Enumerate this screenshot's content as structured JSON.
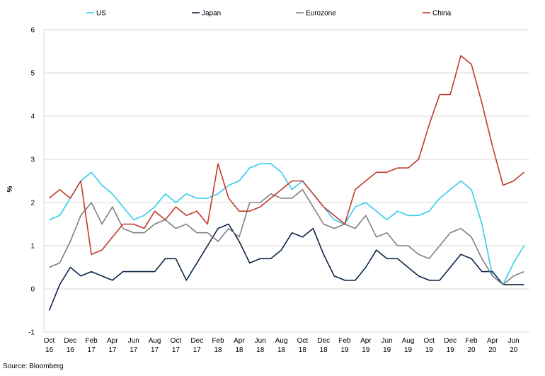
{
  "source": "Source: Bloomberg",
  "chart_data": {
    "type": "line",
    "title": "",
    "xlabel": "",
    "ylabel": "%",
    "ylim": [
      -1,
      6
    ],
    "yticks": [
      -1,
      0,
      1,
      2,
      3,
      4,
      5,
      6
    ],
    "grid": "horizontal",
    "legend_position": "top",
    "x": [
      "Oct 16",
      "Nov 16",
      "Dec 16",
      "Jan 17",
      "Feb 17",
      "Mar 17",
      "Apr 17",
      "May 17",
      "Jun 17",
      "Jul 17",
      "Aug 17",
      "Sep 17",
      "Oct 17",
      "Nov 17",
      "Dec 17",
      "Jan 18",
      "Feb 18",
      "Mar 18",
      "Apr 18",
      "May 18",
      "Jun 18",
      "Jul 18",
      "Aug 18",
      "Sep 18",
      "Oct 18",
      "Nov 18",
      "Dec 18",
      "Jan 19",
      "Feb 19",
      "Mar 19",
      "Apr 19",
      "May 19",
      "Jun 19",
      "Jul 19",
      "Aug 19",
      "Sep 19",
      "Oct 19",
      "Nov 19",
      "Dec 19",
      "Jan 20",
      "Feb 20",
      "Mar 20",
      "Apr 20",
      "May 20",
      "Jun 20",
      "Jul 20"
    ],
    "x_tick_labels": [
      {
        "index": 0,
        "line1": "Oct",
        "line2": "16"
      },
      {
        "index": 2,
        "line1": "Dec",
        "line2": "16"
      },
      {
        "index": 4,
        "line1": "Feb",
        "line2": "17"
      },
      {
        "index": 6,
        "line1": "Apr",
        "line2": "17"
      },
      {
        "index": 8,
        "line1": "Jun",
        "line2": "17"
      },
      {
        "index": 10,
        "line1": "Aug",
        "line2": "17"
      },
      {
        "index": 12,
        "line1": "Oct",
        "line2": "17"
      },
      {
        "index": 14,
        "line1": "Dec",
        "line2": "17"
      },
      {
        "index": 16,
        "line1": "Feb",
        "line2": "18"
      },
      {
        "index": 18,
        "line1": "Apr",
        "line2": "18"
      },
      {
        "index": 20,
        "line1": "Jun",
        "line2": "18"
      },
      {
        "index": 22,
        "line1": "Aug",
        "line2": "18"
      },
      {
        "index": 24,
        "line1": "Oct",
        "line2": "18"
      },
      {
        "index": 26,
        "line1": "Dec",
        "line2": "18"
      },
      {
        "index": 28,
        "line1": "Feb",
        "line2": "19"
      },
      {
        "index": 30,
        "line1": "Apr",
        "line2": "19"
      },
      {
        "index": 32,
        "line1": "Jun",
        "line2": "19"
      },
      {
        "index": 34,
        "line1": "Aug",
        "line2": "19"
      },
      {
        "index": 36,
        "line1": "Oct",
        "line2": "19"
      },
      {
        "index": 38,
        "line1": "Dec",
        "line2": "19"
      },
      {
        "index": 40,
        "line1": "Feb",
        "line2": "20"
      },
      {
        "index": 42,
        "line1": "Apr",
        "line2": "20"
      },
      {
        "index": 44,
        "line1": "Jun",
        "line2": "20"
      }
    ],
    "series": [
      {
        "name": "US",
        "color": "#33CCEE",
        "values": [
          1.6,
          1.7,
          2.1,
          2.5,
          2.7,
          2.4,
          2.2,
          1.9,
          1.6,
          1.7,
          1.9,
          2.2,
          2.0,
          2.2,
          2.1,
          2.1,
          2.2,
          2.4,
          2.5,
          2.8,
          2.9,
          2.9,
          2.7,
          2.3,
          2.5,
          2.2,
          1.9,
          1.6,
          1.5,
          1.9,
          2.0,
          1.8,
          1.6,
          1.8,
          1.7,
          1.7,
          1.8,
          2.1,
          2.3,
          2.5,
          2.3,
          1.5,
          0.3,
          0.1,
          0.6,
          1.0
        ]
      },
      {
        "name": "Japan",
        "color": "#0B2447",
        "values": [
          -0.5,
          0.1,
          0.5,
          0.3,
          0.4,
          0.3,
          0.2,
          0.4,
          0.4,
          0.4,
          0.4,
          0.7,
          0.7,
          0.2,
          0.6,
          1.0,
          1.4,
          1.5,
          1.1,
          0.6,
          0.7,
          0.7,
          0.9,
          1.3,
          1.2,
          1.4,
          0.8,
          0.3,
          0.2,
          0.2,
          0.5,
          0.9,
          0.7,
          0.7,
          0.5,
          0.3,
          0.2,
          0.2,
          0.5,
          0.8,
          0.7,
          0.4,
          0.4,
          0.1,
          0.1,
          0.1
        ]
      },
      {
        "name": "Eurozone",
        "color": "#808080",
        "values": [
          0.5,
          0.6,
          1.1,
          1.7,
          2.0,
          1.5,
          1.9,
          1.4,
          1.3,
          1.3,
          1.5,
          1.6,
          1.4,
          1.5,
          1.3,
          1.3,
          1.1,
          1.4,
          1.2,
          2.0,
          2.0,
          2.2,
          2.1,
          2.1,
          2.3,
          1.9,
          1.5,
          1.4,
          1.5,
          1.4,
          1.7,
          1.2,
          1.3,
          1.0,
          1.0,
          0.8,
          0.7,
          1.0,
          1.3,
          1.4,
          1.2,
          0.7,
          0.3,
          0.1,
          0.3,
          0.4
        ]
      },
      {
        "name": "China",
        "color": "#C0392B",
        "values": [
          2.1,
          2.3,
          2.1,
          2.5,
          0.8,
          0.9,
          1.2,
          1.5,
          1.5,
          1.4,
          1.8,
          1.6,
          1.9,
          1.7,
          1.8,
          1.5,
          2.9,
          2.1,
          1.8,
          1.8,
          1.9,
          2.1,
          2.3,
          2.5,
          2.5,
          2.2,
          1.9,
          1.7,
          1.5,
          2.3,
          2.5,
          2.7,
          2.7,
          2.8,
          2.8,
          3.0,
          3.8,
          4.5,
          4.5,
          5.4,
          5.2,
          4.3,
          3.3,
          2.4,
          2.5,
          2.7
        ]
      }
    ]
  }
}
